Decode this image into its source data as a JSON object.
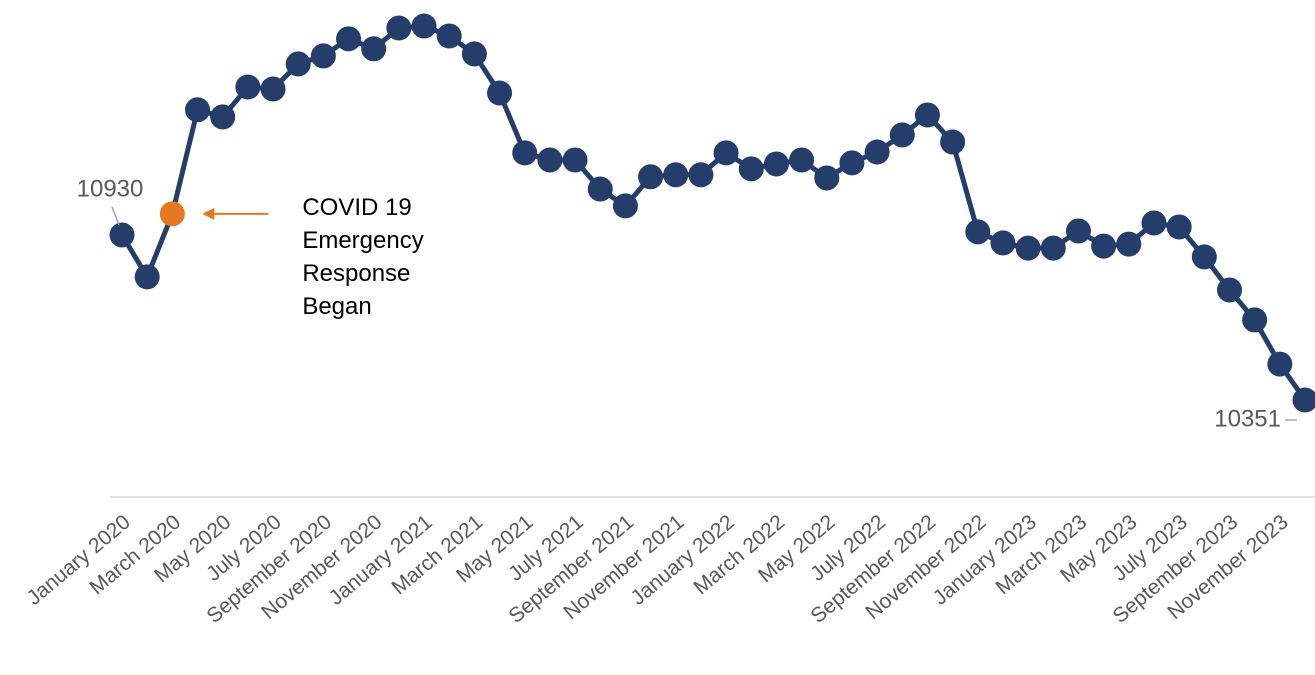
{
  "chart_data": {
    "type": "line",
    "categories": [
      "January 2020",
      null,
      "March 2020",
      null,
      "May 2020",
      null,
      "July 2020",
      null,
      "September 2020",
      null,
      "November 2020",
      null,
      "January 2021",
      null,
      "March 2021",
      null,
      "May 2021",
      null,
      "July 2021",
      null,
      "September 2021",
      null,
      "November 2021",
      null,
      "January 2022",
      null,
      "March 2022",
      null,
      "May 2022",
      null,
      "July 2022",
      null,
      "September 2022",
      null,
      "November 2022",
      null,
      "January 2023",
      null,
      "March 2023",
      null,
      "May 2023",
      null,
      "July 2023",
      null,
      "September 2023",
      null,
      "November 2023",
      null
    ],
    "series": [
      {
        "color": "#253d6b",
        "values": [
          10930,
          10783,
          11004,
          11369,
          11344,
          11449,
          11442,
          11530,
          11558,
          11618,
          11583,
          11656,
          11663,
          11628,
          11565,
          11428,
          11218,
          11193,
          11193,
          11091,
          11032,
          11134,
          11141,
          11141,
          11218,
          11162,
          11179,
          11193,
          11130,
          11183,
          11221,
          11281,
          11351,
          11256,
          10941,
          10902,
          10884,
          10884,
          10944,
          10891,
          10898,
          10972,
          10958,
          10853,
          10737,
          10632,
          10477,
          10351
        ],
        "value_labels": [
          "10930",
          null,
          null,
          null,
          null,
          null,
          null,
          null,
          null,
          null,
          null,
          null,
          null,
          null,
          null,
          null,
          null,
          null,
          null,
          null,
          null,
          null,
          null,
          null,
          null,
          null,
          null,
          null,
          null,
          null,
          null,
          null,
          null,
          null,
          null,
          null,
          null,
          null,
          null,
          null,
          null,
          null,
          null,
          null,
          null,
          null,
          null,
          "10351"
        ]
      }
    ],
    "annotation": {
      "text": "COVID 19 Emergency Response Began",
      "point": 2,
      "color": "#e87722"
    },
    "grid": false
  }
}
